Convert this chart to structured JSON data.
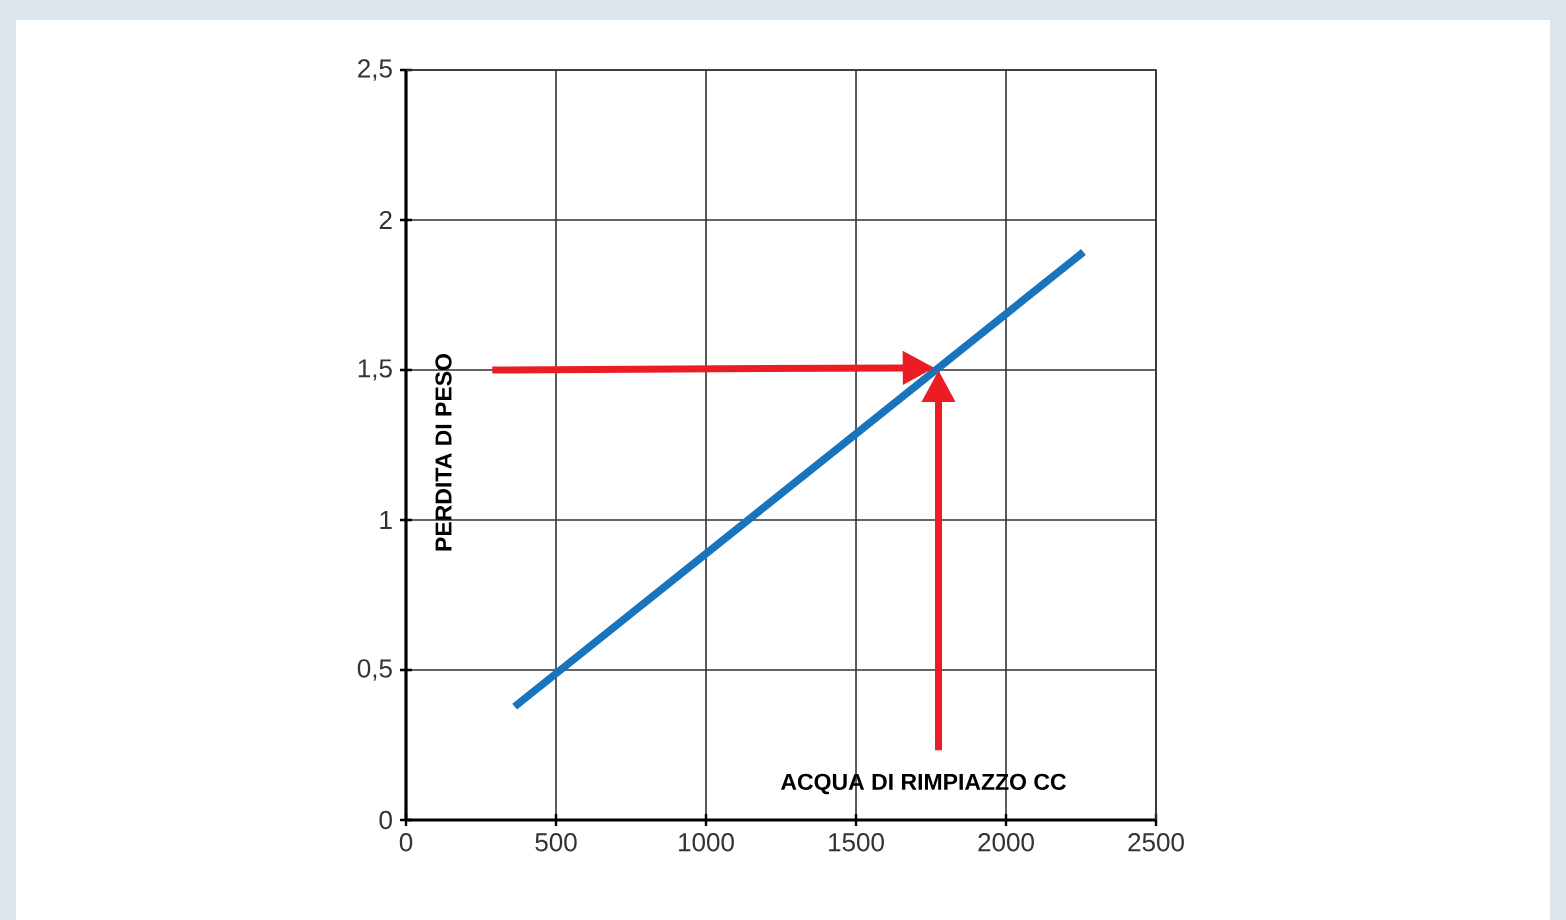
{
  "chart_data": {
    "type": "line",
    "xlabel": "ACQUA DI RIMPIAZZO CC",
    "ylabel": "PERDITA DI PESO",
    "xlim": [
      0,
      2500
    ],
    "ylim": [
      0,
      2.5
    ],
    "xticks": [
      0,
      500,
      1000,
      1500,
      2000,
      2500
    ],
    "yticks": [
      0,
      {
        "value": 0.5,
        "label": "0,5"
      },
      1,
      {
        "value": 1.5,
        "label": "1,5"
      },
      2,
      {
        "value": 2.5,
        "label": "2,5"
      }
    ],
    "grid": true,
    "series": [
      {
        "color": "#1874bd",
        "x": [
          362,
          2258
        ],
        "values": [
          0.378,
          1.893
        ]
      }
    ]
  }
}
